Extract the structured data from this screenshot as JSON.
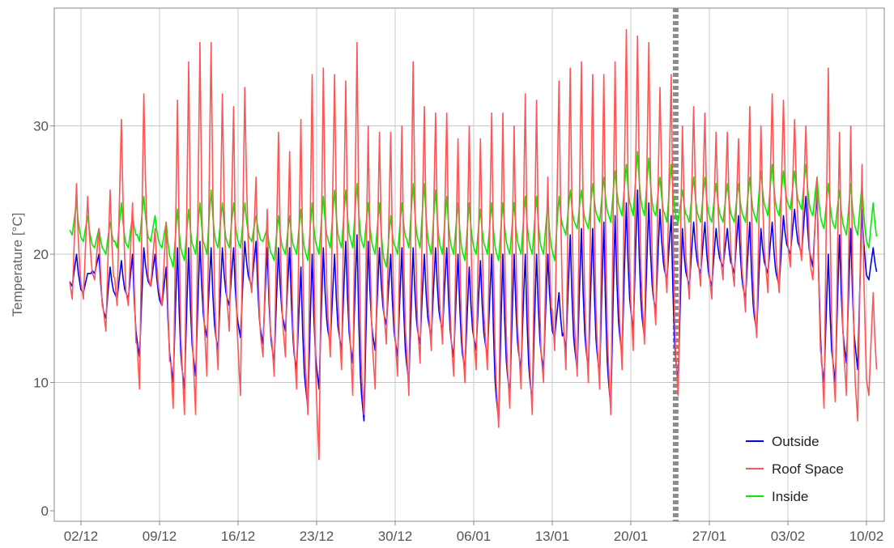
{
  "chart_data": {
    "type": "line",
    "title": "",
    "xlabel": "",
    "ylabel": "Temperature [°C]",
    "x_ticks": [
      "02/12",
      "09/12",
      "16/12",
      "23/12",
      "30/12",
      "06/01",
      "13/01",
      "20/01",
      "27/01",
      "03/02",
      "10/02"
    ],
    "x_tick_days": [
      0,
      7,
      14,
      21,
      28,
      35,
      42,
      49,
      56,
      63,
      70
    ],
    "x_range_days": [
      -2.4,
      71.9
    ],
    "y_ticks": [
      "0",
      "10",
      "20",
      "30"
    ],
    "ylim": [
      -1,
      39
    ],
    "grid": true,
    "legend_position": "bottom-right",
    "vertical_marker": {
      "day": 53.0,
      "style": "dashed",
      "color": "#8c8c8c"
    },
    "x": [
      -1.0,
      0.0,
      1.0,
      2.0,
      3.0,
      4.0,
      5.0,
      6.0,
      7.0,
      8.0,
      9.0,
      10.0,
      11.0,
      12.0,
      13.0,
      14.0,
      15.0,
      16.0,
      17.0,
      18.0,
      19.0,
      20.0,
      21.0,
      22.0,
      23.0,
      24.0,
      25.0,
      26.0,
      27.0,
      28.0,
      29.0,
      30.0,
      31.0,
      32.0,
      33.0,
      34.0,
      35.0,
      36.0,
      37.0,
      38.0,
      39.0,
      40.0,
      41.0,
      42.0,
      43.0,
      44.0,
      45.0,
      46.0,
      47.0,
      48.0,
      49.0,
      50.0,
      51.0,
      52.0,
      53.0,
      54.0,
      55.0,
      56.0,
      57.0,
      58.0,
      59.0,
      60.0,
      61.0,
      62.0,
      63.0,
      64.0,
      65.0,
      66.0,
      67.0,
      68.0,
      69.0,
      70.0
    ],
    "series": [
      {
        "name": "Outside",
        "color": "#0000ff",
        "min": [
          17.5,
          17.0,
          18.5,
          15.0,
          16.5,
          16.5,
          12.0,
          17.5,
          16.0,
          10.0,
          9.5,
          10.5,
          13.5,
          12.5,
          16.0,
          13.5,
          17.5,
          13.0,
          11.5,
          14.0,
          11.0,
          8.0,
          9.5,
          13.0,
          12.5,
          11.5,
          7.0,
          12.5,
          14.5,
          12.0,
          10.0,
          13.0,
          13.5,
          14.0,
          12.0,
          11.0,
          12.5,
          12.0,
          7.0,
          9.0,
          11.0,
          8.5,
          11.0,
          13.5,
          12.5,
          11.0,
          11.0,
          10.5,
          8.0,
          12.0,
          14.0,
          13.5,
          15.5,
          18.0,
          10.0,
          17.5,
          18.5,
          17.5,
          19.0,
          18.5,
          16.5,
          14.0,
          18.5,
          17.5,
          20.0,
          20.0,
          19.0,
          10.0,
          10.0,
          11.5,
          11.0,
          18.0
        ],
        "max": [
          20.0,
          18.5,
          20.0,
          19.0,
          19.5,
          20.0,
          20.5,
          20.0,
          19.0,
          20.5,
          20.5,
          21.0,
          20.5,
          20.5,
          20.5,
          21.0,
          21.0,
          20.5,
          20.5,
          20.5,
          19.0,
          20.0,
          20.5,
          20.0,
          21.0,
          21.5,
          21.0,
          20.5,
          20.0,
          20.5,
          20.5,
          20.0,
          20.5,
          20.5,
          20.0,
          19.0,
          19.5,
          20.0,
          20.0,
          20.0,
          20.0,
          20.0,
          20.0,
          17.0,
          21.5,
          22.0,
          22.0,
          22.5,
          23.0,
          24.0,
          25.0,
          24.0,
          23.5,
          23.0,
          22.0,
          22.5,
          22.5,
          22.0,
          22.0,
          23.0,
          22.5,
          22.0,
          22.5,
          23.0,
          23.5,
          24.5,
          25.0,
          20.0,
          21.5,
          22.0,
          23.5,
          20.5
        ]
      },
      {
        "name": "Roof Space",
        "color": "#ff5555",
        "min": [
          16.5,
          16.5,
          18.0,
          14.0,
          16.0,
          16.0,
          9.5,
          17.5,
          16.0,
          8.0,
          7.5,
          7.5,
          10.5,
          11.0,
          14.0,
          9.0,
          17.0,
          12.0,
          10.5,
          12.0,
          9.5,
          7.5,
          4.0,
          12.0,
          11.0,
          9.0,
          7.5,
          9.5,
          13.0,
          10.5,
          9.0,
          11.5,
          12.5,
          13.0,
          10.5,
          10.0,
          11.0,
          11.0,
          6.5,
          8.0,
          9.5,
          7.5,
          10.0,
          12.5,
          11.0,
          10.5,
          10.0,
          9.5,
          7.5,
          11.0,
          12.5,
          13.0,
          14.5,
          17.0,
          9.0,
          16.5,
          17.5,
          16.5,
          18.0,
          17.5,
          15.5,
          13.5,
          17.0,
          17.0,
          19.0,
          19.5,
          18.0,
          8.0,
          8.5,
          9.0,
          7.0,
          9.0
        ],
        "max": [
          25.5,
          24.5,
          22.0,
          25.0,
          30.5,
          24.0,
          32.5,
          22.0,
          22.5,
          32.0,
          35.0,
          36.5,
          36.5,
          32.5,
          31.5,
          33.0,
          26.0,
          23.5,
          29.5,
          28.0,
          30.5,
          34.0,
          34.5,
          34.0,
          33.5,
          36.5,
          30.0,
          29.5,
          29.5,
          30.0,
          35.0,
          31.5,
          31.0,
          31.0,
          29.0,
          30.0,
          29.0,
          31.0,
          31.0,
          30.0,
          32.5,
          32.0,
          26.0,
          33.5,
          34.5,
          35.0,
          34.0,
          34.0,
          35.0,
          37.5,
          37.0,
          36.5,
          33.0,
          34.0,
          30.0,
          31.5,
          31.0,
          29.5,
          29.5,
          29.0,
          31.5,
          30.0,
          32.5,
          32.0,
          30.5,
          30.0,
          26.0,
          34.5,
          29.5,
          30.0,
          27.0,
          17.0
        ]
      },
      {
        "name": "Inside",
        "color": "#00ee00",
        "min": [
          21.5,
          21.0,
          20.5,
          20.0,
          20.5,
          20.5,
          21.0,
          21.0,
          20.5,
          19.0,
          19.5,
          20.0,
          20.0,
          20.5,
          20.5,
          20.5,
          21.0,
          21.0,
          19.5,
          20.0,
          20.0,
          19.5,
          20.0,
          20.5,
          20.5,
          20.5,
          20.5,
          20.0,
          19.0,
          20.0,
          20.5,
          20.5,
          20.0,
          20.0,
          20.0,
          19.5,
          20.0,
          20.0,
          19.5,
          20.0,
          20.0,
          20.0,
          20.0,
          19.5,
          21.5,
          22.0,
          22.0,
          22.5,
          22.5,
          23.0,
          23.0,
          23.0,
          23.0,
          22.5,
          22.5,
          22.5,
          22.5,
          22.5,
          22.5,
          22.5,
          22.5,
          22.5,
          23.0,
          23.0,
          23.5,
          23.5,
          23.0,
          22.0,
          22.0,
          21.5,
          21.5,
          20.5
        ],
        "max": [
          24.0,
          23.0,
          22.0,
          22.5,
          24.0,
          23.0,
          24.5,
          23.0,
          22.5,
          23.5,
          23.5,
          24.0,
          25.0,
          24.0,
          24.0,
          24.0,
          23.0,
          22.0,
          23.0,
          23.0,
          23.5,
          24.0,
          24.5,
          25.0,
          25.0,
          25.5,
          24.0,
          24.0,
          23.0,
          24.0,
          25.5,
          25.5,
          25.0,
          24.5,
          24.0,
          24.0,
          23.5,
          24.0,
          24.0,
          24.0,
          24.5,
          24.5,
          24.0,
          24.5,
          25.0,
          25.0,
          25.5,
          26.0,
          26.5,
          27.0,
          28.0,
          27.5,
          26.0,
          27.0,
          25.0,
          26.0,
          26.0,
          25.5,
          25.5,
          25.5,
          26.0,
          26.5,
          27.0,
          26.5,
          26.5,
          27.0,
          26.0,
          25.5,
          25.0,
          25.5,
          25.5,
          24.0
        ]
      }
    ]
  }
}
